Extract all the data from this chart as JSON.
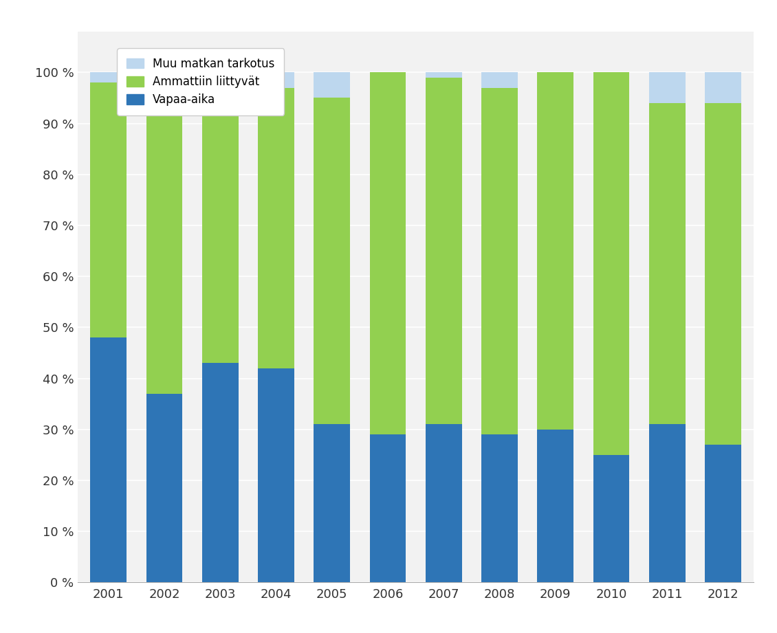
{
  "years": [
    2001,
    2002,
    2003,
    2004,
    2005,
    2006,
    2007,
    2008,
    2009,
    2010,
    2011,
    2012
  ],
  "vapaa_aika": [
    48,
    37,
    43,
    42,
    31,
    29,
    31,
    29,
    30,
    25,
    31,
    27
  ],
  "ammattiin": [
    50,
    59,
    55,
    55,
    64,
    71,
    68,
    68,
    70,
    75,
    63,
    67
  ],
  "muu": [
    2,
    4,
    2,
    3,
    5,
    0,
    1,
    3,
    0,
    0,
    6,
    6
  ],
  "color_vapaa": "#2E75B6",
  "color_ammattiin": "#92D050",
  "color_muu": "#BDD7EE",
  "legend_labels": [
    "Muu matkan tarkotus",
    "Ammattiin liittyvät",
    "Vapaa-aika"
  ],
  "background_color": "#F2F2F2",
  "plot_bg_color": "#F2F2F2",
  "grid_color": "#FFFFFF",
  "spine_color": "#AAAAAA"
}
